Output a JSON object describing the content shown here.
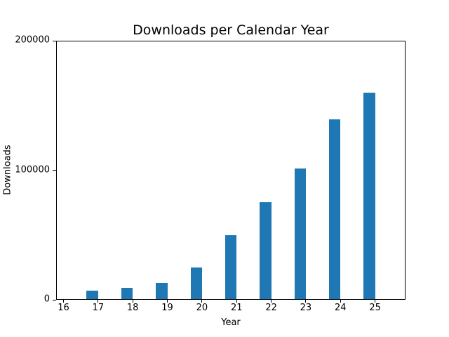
{
  "chart_data": {
    "type": "bar",
    "title": "Downloads per Calendar Year",
    "xlabel": "Year",
    "ylabel": "Downloads",
    "categories": [
      "16",
      "17",
      "18",
      "19",
      "20",
      "21",
      "22",
      "23",
      "24",
      "25"
    ],
    "values": [
      0,
      6800,
      8700,
      12700,
      24800,
      49700,
      75400,
      101400,
      139500,
      160300
    ],
    "ylim": [
      0,
      200000
    ],
    "yticks": [
      0,
      100000,
      200000
    ],
    "ytick_labels": [
      "0",
      "100000",
      "200000"
    ],
    "bar_color": "#1f77b4",
    "grid": false,
    "legend": "none",
    "background": "#ffffff",
    "bar_alignment": "right-edge-at-tick"
  }
}
